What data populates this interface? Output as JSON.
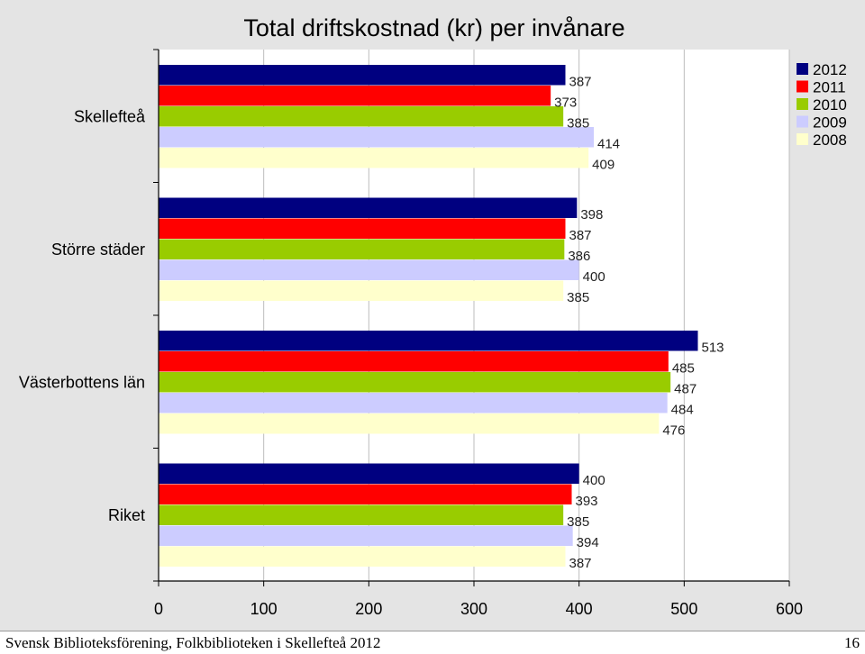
{
  "chart_data": {
    "type": "bar",
    "orientation": "horizontal",
    "title": "Total driftskostnad (kr) per invånare",
    "categories": [
      "Skellefteå",
      "Större städer",
      "Västerbottens län",
      "Riket"
    ],
    "series": [
      {
        "name": "2012",
        "color": "#000080",
        "values": [
          387,
          398,
          513,
          400
        ]
      },
      {
        "name": "2011",
        "color": "#ff0000",
        "values": [
          373,
          387,
          485,
          393
        ]
      },
      {
        "name": "2010",
        "color": "#99cc00",
        "values": [
          385,
          386,
          487,
          385
        ]
      },
      {
        "name": "2009",
        "color": "#ccccff",
        "values": [
          414,
          400,
          484,
          394
        ]
      },
      {
        "name": "2008",
        "color": "#ffffcc",
        "values": [
          409,
          385,
          476,
          387
        ]
      }
    ],
    "xlim": [
      0,
      600
    ],
    "xticks": [
      "0",
      "100",
      "200",
      "300",
      "400",
      "500",
      "600"
    ],
    "grid": true,
    "legend_position": "top-right"
  },
  "footer": {
    "left": "Svensk Biblioteksförening, Folkbiblioteken i Skellefteå 2012",
    "right": "16"
  }
}
